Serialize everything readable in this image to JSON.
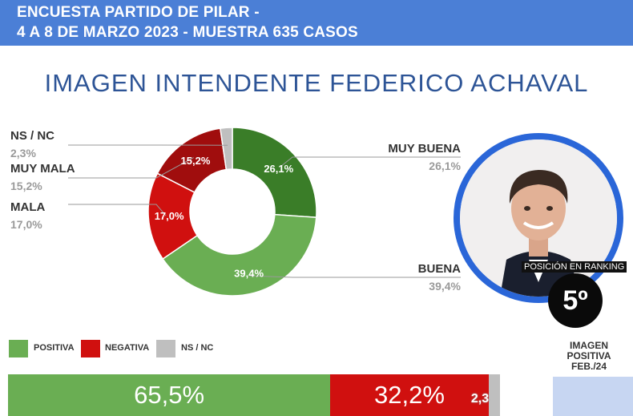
{
  "header": {
    "line1": "ENCUESTA PARTIDO DE PILAR -",
    "line2": "4 A 8 DE MARZO 2023 - MUESTRA 635 CASOS"
  },
  "colors": {
    "muy_buena": "#3a7d28",
    "buena": "#6aae53",
    "mala": "#d0100f",
    "muy_mala": "#a00d0d",
    "ns_nc": "#bfbfbf",
    "header": "#4b7fd6"
  },
  "chart_data": {
    "type": "pie",
    "title": "IMAGEN INTENDENTE FEDERICO ACHAVAL",
    "categories": [
      "MUY BUENA",
      "BUENA",
      "MALA",
      "MUY MALA",
      "NS / NC"
    ],
    "values": [
      26.1,
      39.4,
      17.0,
      15.2,
      2.3
    ],
    "value_labels": [
      "26,1%",
      "39,4%",
      "17,0%",
      "15,2%",
      "2,3%"
    ],
    "legend": [
      "POSITIVA",
      "NEGATIVA",
      "NS / NC"
    ],
    "summary": {
      "categories": [
        "POSITIVA",
        "NEGATIVA",
        "NS / NC"
      ],
      "values": [
        65.5,
        32.2,
        2.3
      ],
      "value_labels": [
        "65,5%",
        "32,2%",
        "2,3"
      ]
    }
  },
  "ranking": {
    "label": "POSICIÓN EN RANKING",
    "position": "5º"
  },
  "previous": {
    "label_lines": [
      "IMAGEN",
      "POSITIVA",
      "FEB./24"
    ]
  }
}
